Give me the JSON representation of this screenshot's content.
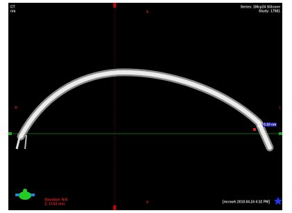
{
  "overlay": {
    "top_left": [
      "CT",
      "n/a"
    ],
    "top_right": [
      "Series: 1Mcp24 Silicone",
      "Study: 17581"
    ],
    "orientation": {
      "top": "A",
      "bottom": "P",
      "left": "R",
      "right": "L"
    },
    "measurement": "0.10 cm",
    "bottom_left": [
      "Standard: N/A",
      "Z: 13.62 mm"
    ],
    "bottom_right": "[mcnark 2010.04.24 4:32 PM]"
  }
}
